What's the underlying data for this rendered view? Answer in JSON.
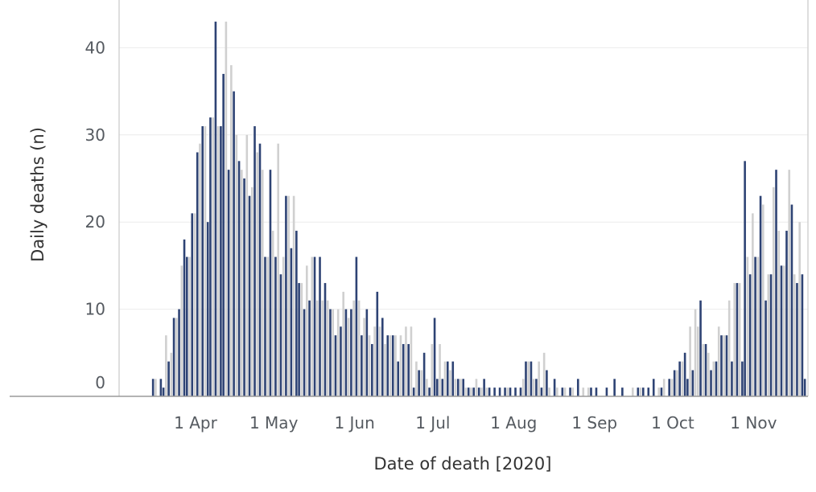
{
  "chart_data": {
    "type": "bar",
    "title": "",
    "xlabel": "Date of death [2020]",
    "ylabel": "Daily deaths (n)",
    "ylim": [
      0,
      44
    ],
    "yticks": [
      0,
      10,
      20,
      30,
      40
    ],
    "xticks": [
      {
        "date": "2020-04-01",
        "label": "1 Apr"
      },
      {
        "date": "2020-05-01",
        "label": "1 May"
      },
      {
        "date": "2020-06-01",
        "label": "1 Jun"
      },
      {
        "date": "2020-07-01",
        "label": "1 Jul"
      },
      {
        "date": "2020-08-01",
        "label": "1 Aug"
      },
      {
        "date": "2020-09-01",
        "label": "1 Sep"
      },
      {
        "date": "2020-10-01",
        "label": "1 Oct"
      },
      {
        "date": "2020-11-01",
        "label": "1 Nov"
      }
    ],
    "grid": true,
    "legend": "none",
    "series": [
      {
        "color": "#2e4374",
        "points": [
          [
            "2020-03-16",
            2
          ],
          [
            "2020-03-19",
            2
          ],
          [
            "2020-03-20",
            1
          ],
          [
            "2020-03-22",
            4
          ],
          [
            "2020-03-24",
            9
          ],
          [
            "2020-03-26",
            10
          ],
          [
            "2020-03-28",
            18
          ],
          [
            "2020-03-29",
            16
          ],
          [
            "2020-03-31",
            21
          ],
          [
            "2020-04-02",
            28
          ],
          [
            "2020-04-04",
            31
          ],
          [
            "2020-04-06",
            20
          ],
          [
            "2020-04-07",
            32
          ],
          [
            "2020-04-09",
            43
          ],
          [
            "2020-04-11",
            31
          ],
          [
            "2020-04-12",
            37
          ],
          [
            "2020-04-14",
            26
          ],
          [
            "2020-04-16",
            35
          ],
          [
            "2020-04-18",
            27
          ],
          [
            "2020-04-20",
            25
          ],
          [
            "2020-04-22",
            23
          ],
          [
            "2020-04-24",
            31
          ],
          [
            "2020-04-26",
            29
          ],
          [
            "2020-04-28",
            16
          ],
          [
            "2020-04-30",
            26
          ],
          [
            "2020-05-02",
            16
          ],
          [
            "2020-05-04",
            14
          ],
          [
            "2020-05-06",
            23
          ],
          [
            "2020-05-08",
            17
          ],
          [
            "2020-05-10",
            19
          ],
          [
            "2020-05-11",
            13
          ],
          [
            "2020-05-13",
            10
          ],
          [
            "2020-05-15",
            11
          ],
          [
            "2020-05-17",
            16
          ],
          [
            "2020-05-19",
            16
          ],
          [
            "2020-05-21",
            13
          ],
          [
            "2020-05-23",
            10
          ],
          [
            "2020-05-25",
            7
          ],
          [
            "2020-05-27",
            8
          ],
          [
            "2020-05-29",
            10
          ],
          [
            "2020-05-31",
            10
          ],
          [
            "2020-06-02",
            16
          ],
          [
            "2020-06-04",
            7
          ],
          [
            "2020-06-06",
            10
          ],
          [
            "2020-06-08",
            6
          ],
          [
            "2020-06-10",
            12
          ],
          [
            "2020-06-12",
            9
          ],
          [
            "2020-06-14",
            7
          ],
          [
            "2020-06-16",
            7
          ],
          [
            "2020-06-18",
            4
          ],
          [
            "2020-06-20",
            6
          ],
          [
            "2020-06-22",
            6
          ],
          [
            "2020-06-24",
            1
          ],
          [
            "2020-06-26",
            3
          ],
          [
            "2020-06-28",
            5
          ],
          [
            "2020-06-30",
            1
          ],
          [
            "2020-07-02",
            9
          ],
          [
            "2020-07-03",
            2
          ],
          [
            "2020-07-05",
            2
          ],
          [
            "2020-07-07",
            4
          ],
          [
            "2020-07-09",
            4
          ],
          [
            "2020-07-11",
            2
          ],
          [
            "2020-07-13",
            2
          ],
          [
            "2020-07-15",
            1
          ],
          [
            "2020-07-17",
            1
          ],
          [
            "2020-07-19",
            1
          ],
          [
            "2020-07-21",
            2
          ],
          [
            "2020-07-23",
            1
          ],
          [
            "2020-07-25",
            1
          ],
          [
            "2020-07-27",
            1
          ],
          [
            "2020-07-29",
            1
          ],
          [
            "2020-07-31",
            1
          ],
          [
            "2020-08-02",
            1
          ],
          [
            "2020-08-04",
            1
          ],
          [
            "2020-08-06",
            4
          ],
          [
            "2020-08-08",
            4
          ],
          [
            "2020-08-10",
            2
          ],
          [
            "2020-08-12",
            1
          ],
          [
            "2020-08-14",
            3
          ],
          [
            "2020-08-17",
            2
          ],
          [
            "2020-08-20",
            1
          ],
          [
            "2020-08-23",
            1
          ],
          [
            "2020-08-26",
            2
          ],
          [
            "2020-08-31",
            1
          ],
          [
            "2020-09-02",
            1
          ],
          [
            "2020-09-06",
            1
          ],
          [
            "2020-09-09",
            2
          ],
          [
            "2020-09-12",
            1
          ],
          [
            "2020-09-18",
            1
          ],
          [
            "2020-09-20",
            1
          ],
          [
            "2020-09-22",
            1
          ],
          [
            "2020-09-24",
            2
          ],
          [
            "2020-09-27",
            1
          ],
          [
            "2020-09-30",
            2
          ],
          [
            "2020-10-02",
            3
          ],
          [
            "2020-10-04",
            4
          ],
          [
            "2020-10-06",
            5
          ],
          [
            "2020-10-07",
            2
          ],
          [
            "2020-10-09",
            3
          ],
          [
            "2020-10-12",
            11
          ],
          [
            "2020-10-14",
            6
          ],
          [
            "2020-10-16",
            3
          ],
          [
            "2020-10-18",
            4
          ],
          [
            "2020-10-20",
            7
          ],
          [
            "2020-10-22",
            7
          ],
          [
            "2020-10-24",
            4
          ],
          [
            "2020-10-26",
            13
          ],
          [
            "2020-10-28",
            4
          ],
          [
            "2020-10-29",
            27
          ],
          [
            "2020-10-31",
            14
          ],
          [
            "2020-11-02",
            16
          ],
          [
            "2020-11-04",
            23
          ],
          [
            "2020-11-06",
            11
          ],
          [
            "2020-11-08",
            14
          ],
          [
            "2020-11-10",
            26
          ],
          [
            "2020-11-12",
            15
          ],
          [
            "2020-11-14",
            19
          ],
          [
            "2020-11-16",
            22
          ],
          [
            "2020-11-18",
            13
          ],
          [
            "2020-11-20",
            14
          ],
          [
            "2020-11-21",
            2
          ]
        ]
      },
      {
        "color": "#d0d0d0",
        "points": [
          [
            "2020-03-17",
            2
          ],
          [
            "2020-03-21",
            7
          ],
          [
            "2020-03-23",
            5
          ],
          [
            "2020-03-25",
            9
          ],
          [
            "2020-03-27",
            15
          ],
          [
            "2020-03-30",
            16
          ],
          [
            "2020-04-01",
            21
          ],
          [
            "2020-04-03",
            29
          ],
          [
            "2020-04-05",
            31
          ],
          [
            "2020-04-08",
            32
          ],
          [
            "2020-04-10",
            31
          ],
          [
            "2020-04-13",
            43
          ],
          [
            "2020-04-15",
            38
          ],
          [
            "2020-04-17",
            30
          ],
          [
            "2020-04-19",
            26
          ],
          [
            "2020-04-21",
            30
          ],
          [
            "2020-04-23",
            24
          ],
          [
            "2020-04-25",
            28
          ],
          [
            "2020-04-27",
            26
          ],
          [
            "2020-04-29",
            16
          ],
          [
            "2020-05-01",
            19
          ],
          [
            "2020-05-03",
            29
          ],
          [
            "2020-05-05",
            16
          ],
          [
            "2020-05-07",
            23
          ],
          [
            "2020-05-09",
            23
          ],
          [
            "2020-05-12",
            13
          ],
          [
            "2020-05-14",
            15
          ],
          [
            "2020-05-16",
            16
          ],
          [
            "2020-05-18",
            11
          ],
          [
            "2020-05-20",
            11
          ],
          [
            "2020-05-22",
            11
          ],
          [
            "2020-05-24",
            10
          ],
          [
            "2020-05-26",
            10
          ],
          [
            "2020-05-28",
            12
          ],
          [
            "2020-05-30",
            9
          ],
          [
            "2020-06-01",
            11
          ],
          [
            "2020-06-03",
            11
          ],
          [
            "2020-06-05",
            9
          ],
          [
            "2020-06-07",
            7
          ],
          [
            "2020-06-09",
            8
          ],
          [
            "2020-06-11",
            8
          ],
          [
            "2020-06-13",
            6
          ],
          [
            "2020-06-15",
            7
          ],
          [
            "2020-06-17",
            7
          ],
          [
            "2020-06-19",
            7
          ],
          [
            "2020-06-21",
            8
          ],
          [
            "2020-06-23",
            8
          ],
          [
            "2020-06-25",
            4
          ],
          [
            "2020-06-27",
            3
          ],
          [
            "2020-06-29",
            2
          ],
          [
            "2020-07-01",
            6
          ],
          [
            "2020-07-04",
            6
          ],
          [
            "2020-07-06",
            4
          ],
          [
            "2020-07-08",
            3
          ],
          [
            "2020-07-10",
            2
          ],
          [
            "2020-07-12",
            2
          ],
          [
            "2020-07-14",
            1
          ],
          [
            "2020-07-16",
            1
          ],
          [
            "2020-07-18",
            2
          ],
          [
            "2020-07-20",
            1
          ],
          [
            "2020-07-22",
            1
          ],
          [
            "2020-07-30",
            1
          ],
          [
            "2020-08-05",
            2
          ],
          [
            "2020-08-07",
            4
          ],
          [
            "2020-08-09",
            2
          ],
          [
            "2020-08-11",
            4
          ],
          [
            "2020-08-13",
            5
          ],
          [
            "2020-08-15",
            1
          ],
          [
            "2020-08-18",
            1
          ],
          [
            "2020-08-21",
            1
          ],
          [
            "2020-08-24",
            1
          ],
          [
            "2020-08-28",
            1
          ],
          [
            "2020-08-30",
            1
          ],
          [
            "2020-09-16",
            1
          ],
          [
            "2020-09-19",
            1
          ],
          [
            "2020-09-26",
            1
          ],
          [
            "2020-09-28",
            2
          ],
          [
            "2020-10-01",
            2
          ],
          [
            "2020-10-03",
            3
          ],
          [
            "2020-10-05",
            4
          ],
          [
            "2020-10-08",
            8
          ],
          [
            "2020-10-10",
            10
          ],
          [
            "2020-10-11",
            8
          ],
          [
            "2020-10-13",
            6
          ],
          [
            "2020-10-15",
            5
          ],
          [
            "2020-10-17",
            4
          ],
          [
            "2020-10-19",
            8
          ],
          [
            "2020-10-21",
            7
          ],
          [
            "2020-10-23",
            11
          ],
          [
            "2020-10-25",
            13
          ],
          [
            "2020-10-27",
            13
          ],
          [
            "2020-10-30",
            16
          ],
          [
            "2020-11-01",
            21
          ],
          [
            "2020-11-03",
            16
          ],
          [
            "2020-11-05",
            22
          ],
          [
            "2020-11-07",
            14
          ],
          [
            "2020-11-09",
            24
          ],
          [
            "2020-11-11",
            19
          ],
          [
            "2020-11-13",
            15
          ],
          [
            "2020-11-15",
            26
          ],
          [
            "2020-11-17",
            14
          ],
          [
            "2020-11-19",
            20
          ]
        ]
      }
    ]
  }
}
